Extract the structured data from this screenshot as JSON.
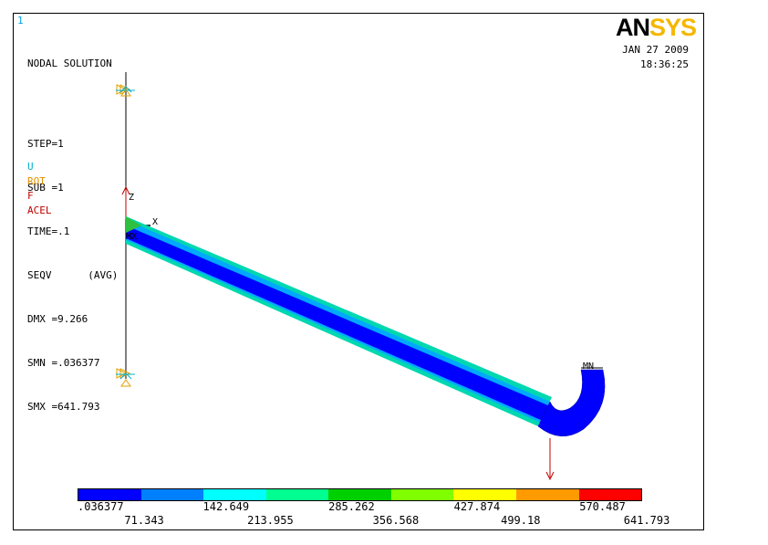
{
  "window": {
    "number": "1"
  },
  "plot_info": {
    "title": "NODAL SOLUTION",
    "step": "STEP=1",
    "sub": "SUB =1",
    "time": "TIME=.1",
    "seqv": "SEQV      (AVG)",
    "dmx": "DMX =9.266",
    "smn": "SMN =.036377",
    "smx": "SMX =641.793"
  },
  "boundary_legend": {
    "u": "U",
    "rot": "ROT",
    "f": "F",
    "acel": "ACEL"
  },
  "branding": {
    "logo_an": "AN",
    "logo_sys": "SYS",
    "date": "JAN 27 2009",
    "time": "18:36:25"
  },
  "model_labels": {
    "axis_z": "Z",
    "axis_x": "X",
    "mx": "MX",
    "mn": "MN"
  },
  "contour_legend": {
    "colors": [
      "#0000ff",
      "#0080ff",
      "#00ffff",
      "#00ff90",
      "#00d000",
      "#80ff00",
      "#ffff00",
      "#ff9a00",
      "#ff0000"
    ],
    "labels_top": [
      ".036377",
      "142.649",
      "285.262",
      "427.874",
      "570.487"
    ],
    "labels_bottom": [
      "71.343",
      "213.955",
      "356.568",
      "499.18",
      "641.793"
    ]
  }
}
